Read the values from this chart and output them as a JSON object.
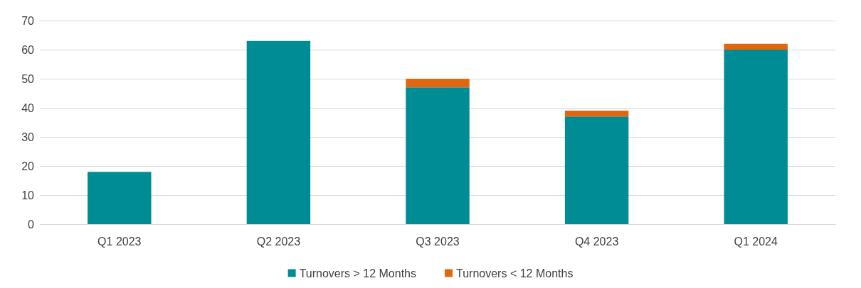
{
  "chart_data": {
    "type": "bar",
    "stacked": true,
    "categories": [
      "Q1 2023",
      "Q2 2023",
      "Q3 2023",
      "Q4 2023",
      "Q1 2024"
    ],
    "series": [
      {
        "name": "Turnovers > 12 Months",
        "color": "#008c95",
        "values": [
          18,
          63,
          47,
          37,
          60
        ]
      },
      {
        "name": "Turnovers < 12 Months",
        "color": "#e0670f",
        "values": [
          0,
          0,
          3,
          2,
          2
        ]
      }
    ],
    "ylim": [
      0,
      70
    ],
    "yticks": [
      0,
      10,
      20,
      30,
      40,
      50,
      60,
      70
    ],
    "grid": "y",
    "legend": "bottom"
  }
}
